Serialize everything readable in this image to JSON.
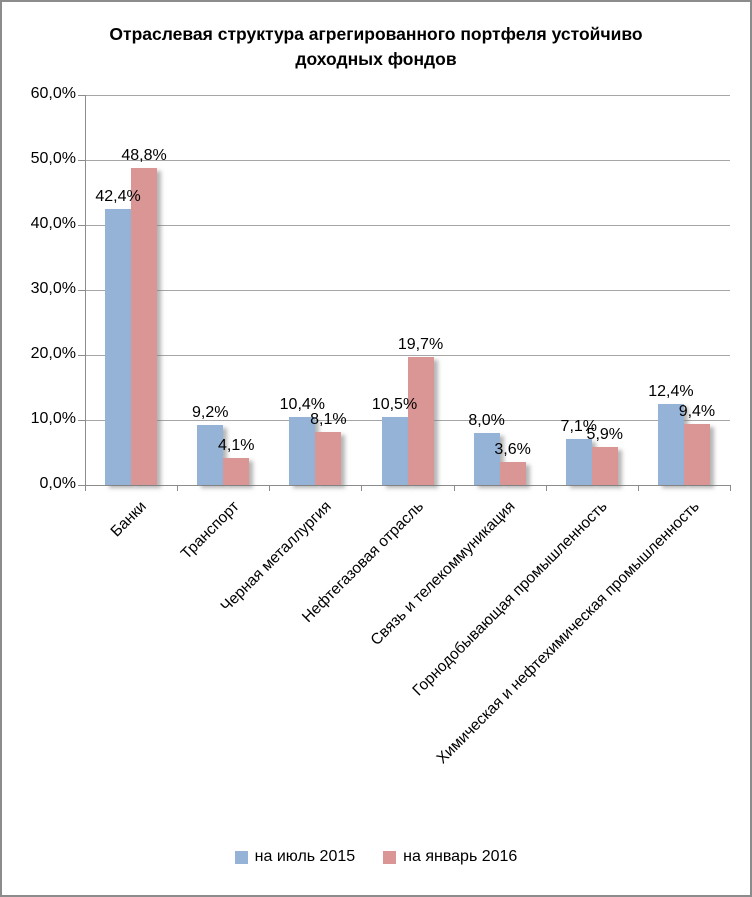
{
  "chart_data": {
    "type": "bar",
    "title": "Отраслевая структура агрегированного портфеля устойчиво доходных фондов",
    "categories": [
      "Банки",
      "Транспорт",
      "Черная металлургия",
      "Нефтегазовая отрасль",
      "Связь и телекоммуникация",
      "Горнодобывающая промышленность",
      "Химическая и нефтехимическая промышленность"
    ],
    "series": [
      {
        "name": "на июль 2015",
        "color": "#95b3d7",
        "values": [
          42.4,
          9.2,
          10.4,
          10.5,
          8.0,
          7.1,
          12.4
        ],
        "labels": [
          "42,4%",
          "9,2%",
          "10,4%",
          "10,5%",
          "8,0%",
          "7,1%",
          "12,4%"
        ]
      },
      {
        "name": "на январь 2016",
        "color": "#d99694",
        "values": [
          48.8,
          4.1,
          8.1,
          19.7,
          3.6,
          5.9,
          9.4
        ],
        "labels": [
          "48,8%",
          "4,1%",
          "8,1%",
          "19,7%",
          "3,6%",
          "5,9%",
          "9,4%"
        ]
      }
    ],
    "y_axis": {
      "min": 0,
      "max": 60,
      "step": 10,
      "tick_labels": [
        "0,0%",
        "10,0%",
        "20,0%",
        "30,0%",
        "40,0%",
        "50,0%",
        "60,0%"
      ]
    },
    "grid": true,
    "legend_position": "bottom",
    "colors": {
      "gridline": "#a6a6a6",
      "axis": "#8c8c8c",
      "text": "#000000",
      "frame_border": "#8c8c8c",
      "background": "#ffffff"
    }
  }
}
